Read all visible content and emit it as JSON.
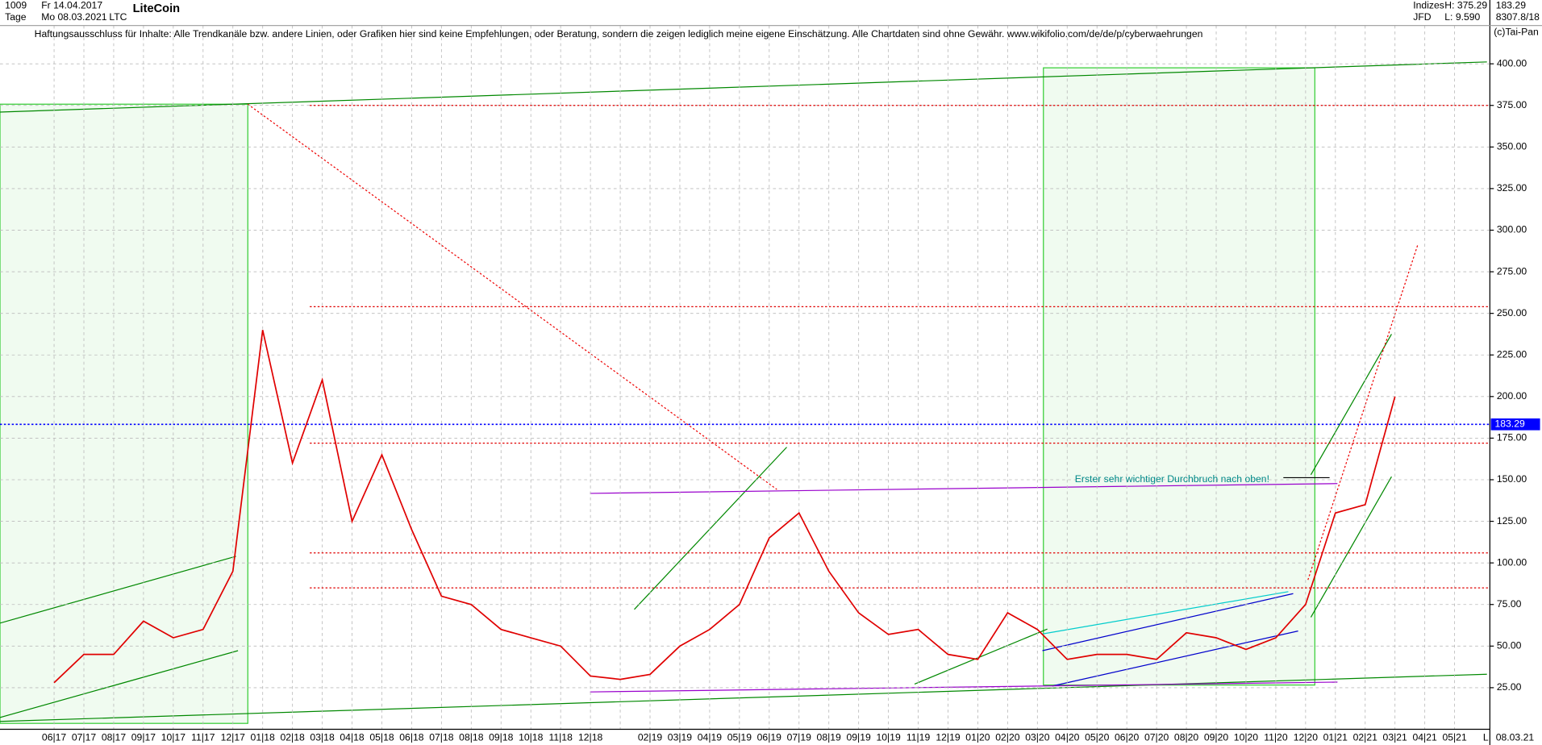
{
  "chart_data": {
    "type": "line",
    "title": "LiteCoin",
    "subtitle": "Haftungsausschluss für Inhalte: Alle Trendkanäle bzw. andere Linien, oder Grafiken hier sind keine Empfehlungen, oder Beratung, sondern die zeigen lediglich meine eigene Einschätzung. Alle Chartdaten sind ohne Gewähr.  www.wikifolio.com/de/de/p/cyberwaehrungen",
    "header": {
      "count": "1009",
      "start": "Fr 14.04.2017",
      "period": "Tage",
      "end": "Mo 08.03.2021",
      "symbol": "LTC",
      "group": "Indizes",
      "source": "JFD",
      "high": "H: 375.29",
      "low": "L: 9.590",
      "last": "183.29",
      "extra": "8307.8/18",
      "copyright": "(c)Tai-Pan",
      "date_label": "08.03.21",
      "scale_mode": "L"
    },
    "annotation": "Erster sehr wichtiger Durchbruch nach oben!",
    "categories": [
      "06|17",
      "07|17",
      "08|17",
      "09|17",
      "10|17",
      "11|17",
      "12|17",
      "01|18",
      "02|18",
      "03|18",
      "04|18",
      "05|18",
      "06|18",
      "07|18",
      "08|18",
      "09|18",
      "10|18",
      "11|18",
      "12|18",
      null,
      "02|19",
      "03|19",
      "04|19",
      "05|19",
      "06|19",
      "07|19",
      "08|19",
      "09|19",
      "10|19",
      "11|19",
      "12|19",
      "01|20",
      "02|20",
      "03|20",
      "04|20",
      "05|20",
      "06|20",
      "07|20",
      "08|20",
      "09|20",
      "10|20",
      "11|20",
      "12|20",
      "01|21",
      "02|21",
      "03|21",
      "04|21",
      "05|21"
    ],
    "series": [
      {
        "name": "LTC",
        "color": "#e00000",
        "values": [
          28,
          45,
          45,
          65,
          55,
          60,
          95,
          240,
          160,
          210,
          125,
          165,
          120,
          80,
          75,
          60,
          55,
          50,
          32,
          30,
          33,
          50,
          60,
          75,
          115,
          130,
          95,
          70,
          57,
          60,
          45,
          42,
          70,
          60,
          42,
          45,
          45,
          42,
          58,
          55,
          48,
          55,
          75,
          130,
          135,
          200,
          null,
          null
        ]
      }
    ],
    "current": {
      "value": 183.29,
      "label": "183.29"
    },
    "current_color": "#0000ff",
    "levels": [
      375,
      254,
      172,
      106,
      85
    ],
    "level_color": "#e00000",
    "ylim": [
      0,
      423
    ],
    "yticks": [
      {
        "value": 25,
        "label": "25.00"
      },
      {
        "value": 50,
        "label": "50.00"
      },
      {
        "value": 75,
        "label": "75.00"
      },
      {
        "value": 100,
        "label": "100.00"
      },
      {
        "value": 125,
        "label": "125.00"
      },
      {
        "value": 150,
        "label": "150.00"
      },
      {
        "value": 175,
        "label": "175.00"
      },
      {
        "value": 200,
        "label": "200.00"
      },
      {
        "value": 225,
        "label": "225.00"
      },
      {
        "value": 250,
        "label": "250.00"
      },
      {
        "value": 275,
        "label": "275.00"
      },
      {
        "value": 300,
        "label": "300.00"
      },
      {
        "value": 325,
        "label": "325.00"
      },
      {
        "value": 350,
        "label": "350.00"
      },
      {
        "value": 375,
        "label": "375.00"
      },
      {
        "value": 400,
        "label": "400.00"
      }
    ],
    "grid": true
  }
}
